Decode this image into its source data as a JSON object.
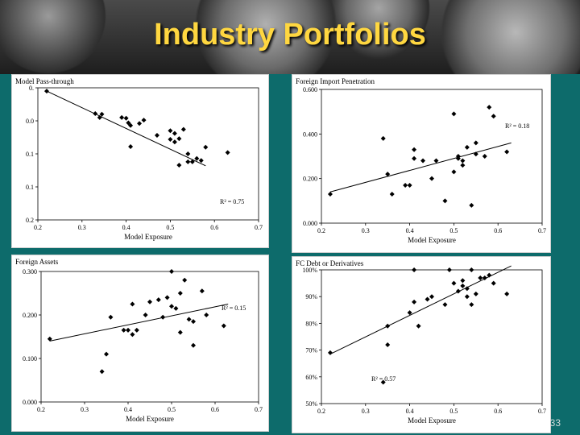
{
  "slide": {
    "title": "Industry Portfolios",
    "page_number": "33",
    "colors": {
      "background": "#0d6b6b",
      "title": "#ffd740"
    }
  },
  "chart_data": [
    {
      "id": "pass",
      "type": "scatter",
      "title": "Model Pass-through",
      "xlabel": "Model Exposure",
      "xlim": [
        0.2,
        0.7
      ],
      "ylim": [
        0.2,
        0.0
      ],
      "y_inverted": true,
      "xticks": [
        "0.2",
        "0.3",
        "0.4",
        "0.5",
        "0.6",
        "0.7"
      ],
      "yticks": [
        {
          "v": 0.0,
          "t": "0."
        },
        {
          "v": 0.05,
          "t": "0.0"
        },
        {
          "v": 0.1,
          "t": "0.1"
        },
        {
          "v": 0.15,
          "t": "0.1"
        },
        {
          "v": 0.2,
          "t": "0.2"
        }
      ],
      "r2_label": "R² = 0.75",
      "r2_pos": "bottom-right",
      "trend": [
        [
          0.22,
          0.005
        ],
        [
          0.58,
          0.118
        ]
      ],
      "points": [
        [
          0.22,
          0.005
        ],
        [
          0.33,
          0.039
        ],
        [
          0.34,
          0.045
        ],
        [
          0.345,
          0.04
        ],
        [
          0.39,
          0.045
        ],
        [
          0.4,
          0.046
        ],
        [
          0.41,
          0.057
        ],
        [
          0.405,
          0.053
        ],
        [
          0.43,
          0.054
        ],
        [
          0.44,
          0.049
        ],
        [
          0.41,
          0.089
        ],
        [
          0.47,
          0.072
        ],
        [
          0.5,
          0.065
        ],
        [
          0.51,
          0.069
        ],
        [
          0.52,
          0.077
        ],
        [
          0.5,
          0.078
        ],
        [
          0.51,
          0.082
        ],
        [
          0.53,
          0.063
        ],
        [
          0.52,
          0.117
        ],
        [
          0.54,
          0.1
        ],
        [
          0.54,
          0.112
        ],
        [
          0.55,
          0.112
        ],
        [
          0.56,
          0.107
        ],
        [
          0.57,
          0.11
        ],
        [
          0.58,
          0.09
        ],
        [
          0.63,
          0.098
        ]
      ]
    },
    {
      "id": "fip",
      "type": "scatter",
      "title": "Foreign Import Penetration",
      "xlabel": "Model Exposure",
      "xlim": [
        0.2,
        0.7
      ],
      "ylim": [
        0.0,
        0.6
      ],
      "yticks": [
        {
          "v": 0.0,
          "t": "0.000"
        },
        {
          "v": 0.2,
          "t": "0.200"
        },
        {
          "v": 0.4,
          "t": "0.400"
        },
        {
          "v": 0.6,
          "t": "0.600"
        }
      ],
      "xticks": [
        "0.2",
        "0.3",
        "0.4",
        "0.5",
        "0.6",
        "0.7"
      ],
      "r2_label": "R² = 0.18",
      "r2_pos": "right",
      "trend": [
        [
          0.22,
          0.14
        ],
        [
          0.63,
          0.36
        ]
      ],
      "points": [
        [
          0.22,
          0.13
        ],
        [
          0.35,
          0.22
        ],
        [
          0.36,
          0.13
        ],
        [
          0.34,
          0.38
        ],
        [
          0.39,
          0.17
        ],
        [
          0.4,
          0.17
        ],
        [
          0.41,
          0.29
        ],
        [
          0.41,
          0.33
        ],
        [
          0.43,
          0.28
        ],
        [
          0.45,
          0.2
        ],
        [
          0.46,
          0.28
        ],
        [
          0.48,
          0.1
        ],
        [
          0.5,
          0.23
        ],
        [
          0.5,
          0.49
        ],
        [
          0.51,
          0.29
        ],
        [
          0.51,
          0.3
        ],
        [
          0.52,
          0.26
        ],
        [
          0.52,
          0.28
        ],
        [
          0.53,
          0.34
        ],
        [
          0.54,
          0.08
        ],
        [
          0.55,
          0.31
        ],
        [
          0.55,
          0.36
        ],
        [
          0.57,
          0.3
        ],
        [
          0.58,
          0.52
        ],
        [
          0.59,
          0.48
        ],
        [
          0.62,
          0.32
        ]
      ]
    },
    {
      "id": "fa",
      "type": "scatter",
      "title": "Foreign Assets",
      "xlabel": "Model Exposure",
      "xlim": [
        0.2,
        0.7
      ],
      "ylim": [
        0.0,
        0.3
      ],
      "yticks": [
        {
          "v": 0.0,
          "t": "0.000"
        },
        {
          "v": 0.1,
          "t": "0.100"
        },
        {
          "v": 0.2,
          "t": "0.200"
        },
        {
          "v": 0.3,
          "t": "0.300"
        }
      ],
      "xticks": [
        "0.2",
        "0.3",
        "0.4",
        "0.5",
        "0.6",
        "0.7"
      ],
      "r2_label": "R² = 0.15",
      "r2_pos": "right",
      "trend": [
        [
          0.22,
          0.14
        ],
        [
          0.63,
          0.225
        ]
      ],
      "points": [
        [
          0.22,
          0.145
        ],
        [
          0.34,
          0.07
        ],
        [
          0.35,
          0.11
        ],
        [
          0.36,
          0.195
        ],
        [
          0.39,
          0.165
        ],
        [
          0.4,
          0.165
        ],
        [
          0.41,
          0.155
        ],
        [
          0.41,
          0.225
        ],
        [
          0.42,
          0.165
        ],
        [
          0.44,
          0.2
        ],
        [
          0.45,
          0.23
        ],
        [
          0.47,
          0.235
        ],
        [
          0.48,
          0.195
        ],
        [
          0.49,
          0.24
        ],
        [
          0.5,
          0.3
        ],
        [
          0.5,
          0.22
        ],
        [
          0.51,
          0.215
        ],
        [
          0.52,
          0.16
        ],
        [
          0.52,
          0.25
        ],
        [
          0.53,
          0.28
        ],
        [
          0.54,
          0.19
        ],
        [
          0.55,
          0.13
        ],
        [
          0.55,
          0.185
        ],
        [
          0.57,
          0.255
        ],
        [
          0.58,
          0.2
        ],
        [
          0.62,
          0.175
        ]
      ]
    },
    {
      "id": "fc",
      "type": "scatter",
      "title": "FC Debt or Derivatives",
      "xlabel": "Model Exposure",
      "xlim": [
        0.2,
        0.7
      ],
      "ylim": [
        0.5,
        1.0
      ],
      "yticks": [
        {
          "v": 0.5,
          "t": "50%"
        },
        {
          "v": 0.6,
          "t": "60%"
        },
        {
          "v": 0.7,
          "t": "70%"
        },
        {
          "v": 0.8,
          "t": "80%"
        },
        {
          "v": 0.9,
          "t": "90%"
        },
        {
          "v": 1.0,
          "t": "100%"
        }
      ],
      "xticks": [
        "0.2",
        "0.3",
        "0.4",
        "0.5",
        "0.6",
        "0.7"
      ],
      "r2_label": "R² = 0.57",
      "r2_pos": "bottom-left",
      "trend": [
        [
          0.22,
          0.685
        ],
        [
          0.63,
          1.015
        ]
      ],
      "points": [
        [
          0.22,
          0.69
        ],
        [
          0.35,
          0.72
        ],
        [
          0.35,
          0.79
        ],
        [
          0.34,
          0.58
        ],
        [
          0.4,
          0.84
        ],
        [
          0.41,
          0.88
        ],
        [
          0.41,
          1.0
        ],
        [
          0.42,
          0.79
        ],
        [
          0.44,
          0.89
        ],
        [
          0.45,
          0.9
        ],
        [
          0.48,
          0.87
        ],
        [
          0.49,
          1.0
        ],
        [
          0.5,
          0.95
        ],
        [
          0.51,
          0.92
        ],
        [
          0.52,
          0.96
        ],
        [
          0.52,
          0.94
        ],
        [
          0.53,
          0.93
        ],
        [
          0.53,
          0.9
        ],
        [
          0.54,
          1.0
        ],
        [
          0.54,
          0.87
        ],
        [
          0.55,
          0.91
        ],
        [
          0.56,
          0.97
        ],
        [
          0.57,
          0.97
        ],
        [
          0.58,
          0.98
        ],
        [
          0.59,
          0.95
        ],
        [
          0.62,
          0.91
        ]
      ]
    }
  ]
}
